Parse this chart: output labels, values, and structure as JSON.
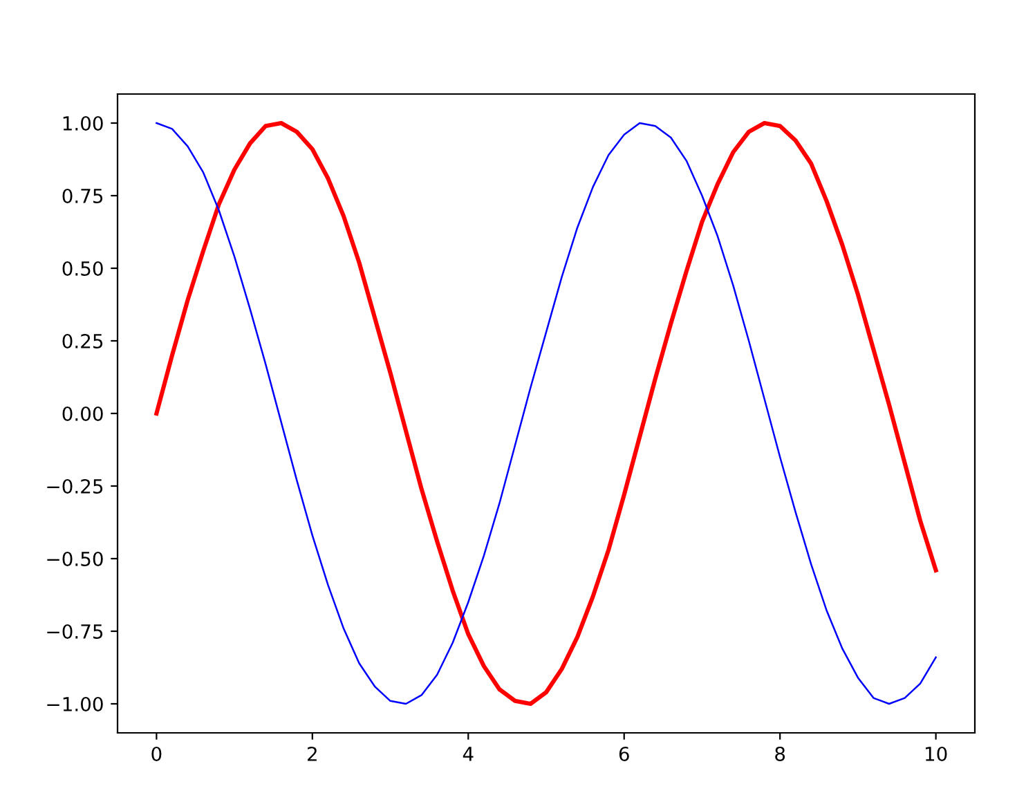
{
  "chart_data": {
    "type": "line",
    "x": [
      0,
      0.2,
      0.4,
      0.6,
      0.8,
      1.0,
      1.2,
      1.4,
      1.6,
      1.8,
      2.0,
      2.2,
      2.4,
      2.6,
      2.8,
      3.0,
      3.2,
      3.4,
      3.6,
      3.8,
      4.0,
      4.2,
      4.4,
      4.6,
      4.8,
      5.0,
      5.2,
      5.4,
      5.6,
      5.8,
      6.0,
      6.2,
      6.4,
      6.6,
      6.8,
      7.0,
      7.2,
      7.4,
      7.6,
      7.8,
      8.0,
      8.2,
      8.4,
      8.6,
      8.8,
      9.0,
      9.2,
      9.4,
      9.6,
      9.8,
      10.0
    ],
    "series": [
      {
        "color": "#ff0000",
        "values": [
          0.0,
          0.2,
          0.39,
          0.56,
          0.72,
          0.84,
          0.93,
          0.99,
          1.0,
          0.97,
          0.91,
          0.81,
          0.68,
          0.52,
          0.33,
          0.14,
          -0.06,
          -0.26,
          -0.44,
          -0.61,
          -0.76,
          -0.87,
          -0.95,
          -0.99,
          -1.0,
          -0.96,
          -0.88,
          -0.77,
          -0.63,
          -0.47,
          -0.28,
          -0.08,
          0.12,
          0.31,
          0.49,
          0.66,
          0.79,
          0.9,
          0.97,
          1.0,
          0.99,
          0.94,
          0.86,
          0.73,
          0.58,
          0.41,
          0.22,
          0.03,
          -0.17,
          -0.37,
          -0.54
        ]
      },
      {
        "color": "#0000ff",
        "values": [
          1.0,
          0.98,
          0.92,
          0.83,
          0.7,
          0.54,
          0.36,
          0.17,
          -0.03,
          -0.23,
          -0.42,
          -0.59,
          -0.74,
          -0.86,
          -0.94,
          -0.99,
          -1.0,
          -0.97,
          -0.9,
          -0.79,
          -0.65,
          -0.49,
          -0.31,
          -0.11,
          0.09,
          0.28,
          0.47,
          0.64,
          0.78,
          0.89,
          0.96,
          1.0,
          0.99,
          0.95,
          0.87,
          0.75,
          0.61,
          0.44,
          0.25,
          0.05,
          -0.15,
          -0.34,
          -0.52,
          -0.68,
          -0.81,
          -0.91,
          -0.98,
          -1.0,
          -0.98,
          -0.93,
          -0.84
        ]
      }
    ],
    "xlim": [
      -0.5,
      10.5
    ],
    "ylim": [
      -1.1,
      1.1
    ],
    "xticks": [
      0,
      2,
      4,
      6,
      8,
      10
    ],
    "yticks": [
      {
        "value": -1.0,
        "label": "−1.00"
      },
      {
        "value": -0.75,
        "label": "−0.75"
      },
      {
        "value": -0.5,
        "label": "−0.50"
      },
      {
        "value": -0.25,
        "label": "−0.25"
      },
      {
        "value": 0.0,
        "label": "0.00"
      },
      {
        "value": 0.25,
        "label": "0.25"
      },
      {
        "value": 0.5,
        "label": "0.50"
      },
      {
        "value": 0.75,
        "label": "0.75"
      },
      {
        "value": 1.0,
        "label": "1.00"
      }
    ],
    "grid": false
  }
}
